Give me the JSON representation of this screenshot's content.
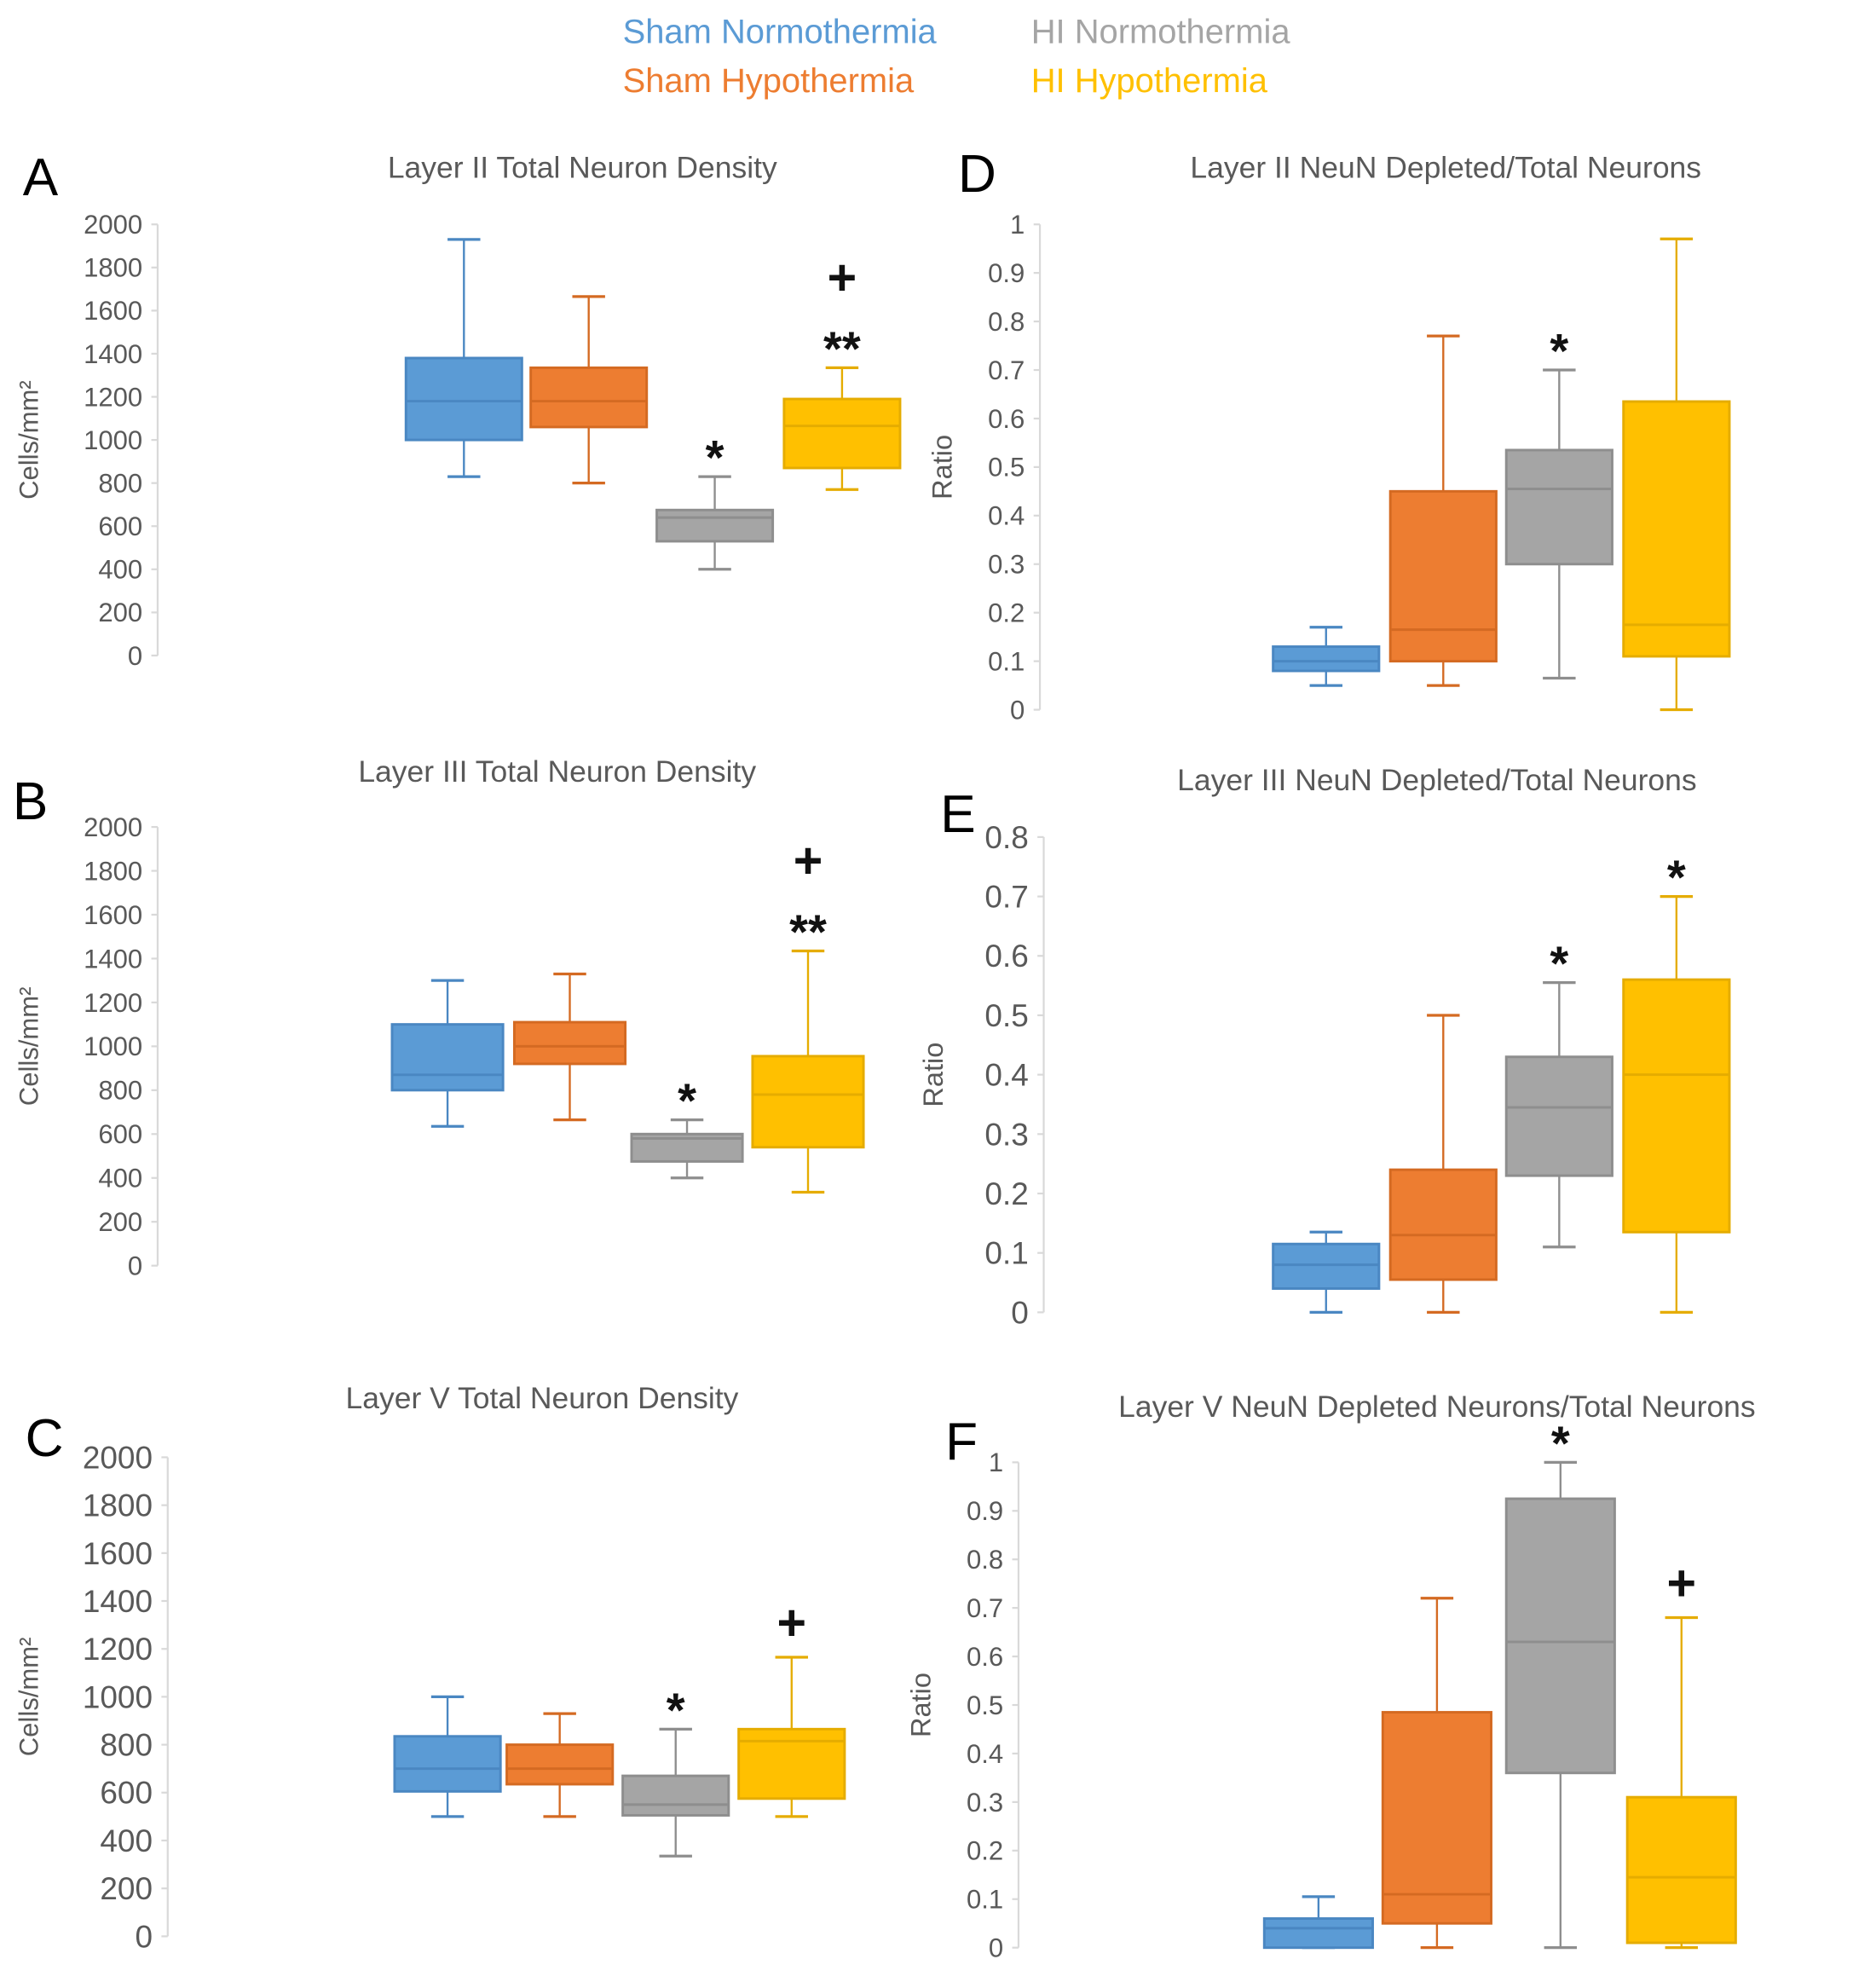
{
  "legend": [
    {
      "label": "Sham  Normothermia",
      "key": "sham_normo",
      "color": "#5B9BD5"
    },
    {
      "label": "HI Normothermia",
      "key": "hi_normo",
      "color": "#A5A5A5"
    },
    {
      "label": "Sham  Hypothermia",
      "key": "sham_hypo",
      "color": "#ED7D31"
    },
    {
      "label": "HI Hypothermia",
      "key": "hi_hypo",
      "color": "#FFC000"
    }
  ],
  "chart_data": [
    {
      "panel": "A",
      "type": "box",
      "title": "Layer II Total Neuron Density",
      "ylabel": "Cells/mm²",
      "ylim": [
        0,
        2000
      ],
      "yticks": [
        0,
        200,
        400,
        600,
        800,
        1000,
        1200,
        1400,
        1600,
        1800,
        2000
      ],
      "ytick_labels": [
        "0",
        "200",
        "400",
        "600",
        "800",
        "1000",
        "1200",
        "1400",
        "1600",
        "1800",
        "2000"
      ],
      "categories": [
        "Sham Normothermia",
        "Sham Hypothermia",
        "HI Normothermia",
        "HI Hypothermia"
      ],
      "series": [
        {
          "name": "Sham Normothermia",
          "min": 830,
          "q1": 1000,
          "median": 1180,
          "q3": 1380,
          "max": 1930,
          "annotations": []
        },
        {
          "name": "Sham Hypothermia",
          "min": 800,
          "q1": 1060,
          "median": 1180,
          "q3": 1335,
          "max": 1665,
          "annotations": []
        },
        {
          "name": "HI Normothermia",
          "min": 400,
          "q1": 530,
          "median": 640,
          "q3": 675,
          "max": 830,
          "annotations": [
            "*"
          ]
        },
        {
          "name": "HI Hypothermia",
          "min": 770,
          "q1": 870,
          "median": 1065,
          "q3": 1190,
          "max": 1335,
          "annotations": [
            "**",
            "+"
          ]
        }
      ]
    },
    {
      "panel": "D",
      "type": "box",
      "title": "Layer II NeuN Depleted/Total Neurons",
      "ylabel": "Ratio",
      "ylim": [
        0,
        1
      ],
      "yticks": [
        0,
        0.1,
        0.2,
        0.3,
        0.4,
        0.5,
        0.6,
        0.7,
        0.8,
        0.9,
        1
      ],
      "ytick_labels": [
        "0",
        "0.1",
        "0.2",
        "0.3",
        "0.4",
        "0.5",
        "0.6",
        "0.7",
        "0.8",
        "0.9",
        "1"
      ],
      "categories": [
        "Sham Normothermia",
        "Sham Hypothermia",
        "HI Normothermia",
        "HI Hypothermia"
      ],
      "series": [
        {
          "name": "Sham Normothermia",
          "min": 0.05,
          "q1": 0.08,
          "median": 0.1,
          "q3": 0.13,
          "max": 0.17,
          "annotations": []
        },
        {
          "name": "Sham Hypothermia",
          "min": 0.05,
          "q1": 0.1,
          "median": 0.165,
          "q3": 0.45,
          "max": 0.77,
          "annotations": []
        },
        {
          "name": "HI Normothermia",
          "min": 0.065,
          "q1": 0.3,
          "median": 0.455,
          "q3": 0.535,
          "max": 0.7,
          "annotations": [
            "*"
          ]
        },
        {
          "name": "HI Hypothermia",
          "min": 0,
          "q1": 0.11,
          "median": 0.175,
          "q3": 0.635,
          "max": 0.97,
          "annotations": []
        }
      ]
    },
    {
      "panel": "B",
      "type": "box",
      "title": "Layer III Total Neuron Density",
      "ylabel": "Cells/mm²",
      "ylim": [
        0,
        2000
      ],
      "yticks": [
        0,
        200,
        400,
        600,
        800,
        1000,
        1200,
        1400,
        1600,
        1800,
        2000
      ],
      "ytick_labels": [
        "0",
        "200",
        "400",
        "600",
        "800",
        "1000",
        "1200",
        "1400",
        "1600",
        "1800",
        "2000"
      ],
      "categories": [
        "Sham Normothermia",
        "Sham Hypothermia",
        "HI Normothermia",
        "HI Hypothermia"
      ],
      "series": [
        {
          "name": "Sham Normothermia",
          "min": 635,
          "q1": 800,
          "median": 870,
          "q3": 1100,
          "max": 1300,
          "annotations": []
        },
        {
          "name": "Sham Hypothermia",
          "min": 665,
          "q1": 920,
          "median": 1000,
          "q3": 1110,
          "max": 1330,
          "annotations": []
        },
        {
          "name": "HI Normothermia",
          "min": 400,
          "q1": 475,
          "median": 580,
          "q3": 600,
          "max": 665,
          "annotations": [
            "*"
          ]
        },
        {
          "name": "HI Hypothermia",
          "min": 335,
          "q1": 540,
          "median": 780,
          "q3": 955,
          "max": 1435,
          "annotations": [
            "**",
            "+"
          ]
        }
      ]
    },
    {
      "panel": "E",
      "type": "box",
      "title": "Layer III NeuN Depleted/Total Neurons",
      "ylabel": "Ratio",
      "ylim": [
        0,
        0.8
      ],
      "yticks": [
        0,
        0.1,
        0.2,
        0.3,
        0.4,
        0.5,
        0.6,
        0.7,
        0.8
      ],
      "ytick_labels": [
        "0",
        "0.1",
        "0.2",
        "0.3",
        "0.4",
        "0.5",
        "0.6",
        "0.7",
        "0.8"
      ],
      "categories": [
        "Sham Normothermia",
        "Sham Hypothermia",
        "HI Normothermia",
        "HI Hypothermia"
      ],
      "series": [
        {
          "name": "Sham Normothermia",
          "min": 0,
          "q1": 0.04,
          "median": 0.08,
          "q3": 0.115,
          "max": 0.135,
          "annotations": []
        },
        {
          "name": "Sham Hypothermia",
          "min": 0,
          "q1": 0.055,
          "median": 0.13,
          "q3": 0.24,
          "max": 0.5,
          "annotations": []
        },
        {
          "name": "HI Normothermia",
          "min": 0.11,
          "q1": 0.23,
          "median": 0.345,
          "q3": 0.43,
          "max": 0.555,
          "annotations": [
            "*"
          ]
        },
        {
          "name": "HI Hypothermia",
          "min": 0,
          "q1": 0.135,
          "median": 0.4,
          "q3": 0.56,
          "max": 0.7,
          "annotations": [
            "*"
          ]
        }
      ]
    },
    {
      "panel": "C",
      "type": "box",
      "title": "Layer V Total Neuron Density",
      "ylabel": "Cells/mm²",
      "ylim": [
        0,
        2000
      ],
      "yticks": [
        0,
        200,
        400,
        600,
        800,
        1000,
        1200,
        1400,
        1600,
        1800,
        2000
      ],
      "ytick_labels": [
        "0",
        "200",
        "400",
        "600",
        "800",
        "1000",
        "1200",
        "1400",
        "1600",
        "1800",
        "2000"
      ],
      "categories": [
        "Sham Normothermia",
        "Sham Hypothermia",
        "HI Normothermia",
        "HI Hypothermia"
      ],
      "series": [
        {
          "name": "Sham Normothermia",
          "min": 500,
          "q1": 605,
          "median": 700,
          "q3": 835,
          "max": 1000,
          "annotations": []
        },
        {
          "name": "Sham Hypothermia",
          "min": 500,
          "q1": 635,
          "median": 700,
          "q3": 800,
          "max": 930,
          "annotations": []
        },
        {
          "name": "HI Normothermia",
          "min": 335,
          "q1": 505,
          "median": 550,
          "q3": 670,
          "max": 865,
          "annotations": [
            "*"
          ]
        },
        {
          "name": "HI Hypothermia",
          "min": 500,
          "q1": 575,
          "median": 815,
          "q3": 865,
          "max": 1165,
          "annotations": [
            "+"
          ]
        }
      ]
    },
    {
      "panel": "F",
      "type": "box",
      "title": "Layer V NeuN Depleted Neurons/Total Neurons",
      "ylabel": "Ratio",
      "ylim": [
        0,
        1
      ],
      "yticks": [
        0,
        0.1,
        0.2,
        0.3,
        0.4,
        0.5,
        0.6,
        0.7,
        0.8,
        0.9,
        1
      ],
      "ytick_labels": [
        "0",
        "0.1",
        "0.2",
        "0.3",
        "0.4",
        "0.5",
        "0.6",
        "0.7",
        "0.8",
        "0.9",
        "1"
      ],
      "categories": [
        "Sham Normothermia",
        "Sham Hypothermia",
        "HI Normothermia",
        "HI Hypothermia"
      ],
      "series": [
        {
          "name": "Sham Normothermia",
          "min": 0,
          "q1": 0,
          "median": 0.04,
          "q3": 0.06,
          "max": 0.105,
          "annotations": []
        },
        {
          "name": "Sham Hypothermia",
          "min": 0,
          "q1": 0.05,
          "median": 0.11,
          "q3": 0.485,
          "max": 0.72,
          "annotations": []
        },
        {
          "name": "HI Normothermia",
          "min": 0,
          "q1": 0.36,
          "median": 0.63,
          "q3": 0.925,
          "max": 1.0,
          "annotations": [
            "*"
          ]
        },
        {
          "name": "HI Hypothermia",
          "min": 0,
          "q1": 0.01,
          "median": 0.145,
          "q3": 0.31,
          "max": 0.68,
          "annotations": [
            "+"
          ]
        }
      ]
    }
  ]
}
